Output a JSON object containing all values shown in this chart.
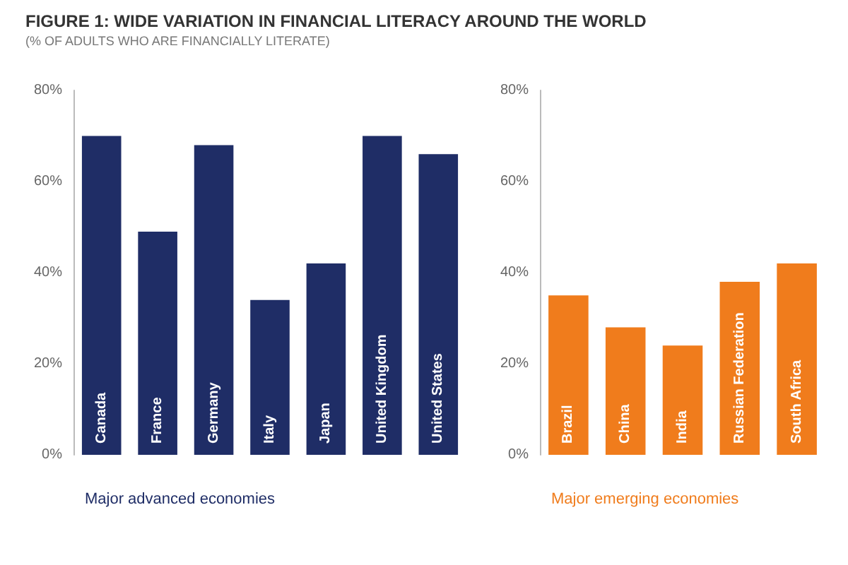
{
  "chart_data": [
    {
      "type": "bar",
      "title": "FIGURE 1: WIDE VARIATION IN FINANCIAL LITERACY AROUND THE WORLD",
      "subtitle": "(% OF ADULTS WHO ARE FINANCIALLY LITERATE)",
      "xlabel": "Major advanced economies",
      "categories": [
        "Canada",
        "France",
        "Germany",
        "Italy",
        "Japan",
        "United Kingdom",
        "United States"
      ],
      "values": [
        70,
        49,
        68,
        34,
        42,
        70,
        66
      ],
      "color": "#1f2d66",
      "ylim": [
        0,
        80
      ],
      "yticks": [
        {
          "value": 0,
          "label": "0%"
        },
        {
          "value": 20,
          "label": "20%"
        },
        {
          "value": 40,
          "label": "40%"
        },
        {
          "value": 60,
          "label": "60%"
        },
        {
          "value": 80,
          "label": "80%"
        }
      ],
      "grid": false
    },
    {
      "type": "bar",
      "xlabel": "Major emerging economies",
      "categories": [
        "Brazil",
        "China",
        "India",
        "Russian Federation",
        "South Africa"
      ],
      "values": [
        35,
        28,
        24,
        38,
        42
      ],
      "color": "#f07c1c",
      "ylim": [
        0,
        80
      ],
      "yticks": [
        {
          "value": 0,
          "label": "0%"
        },
        {
          "value": 20,
          "label": "20%"
        },
        {
          "value": 40,
          "label": "40%"
        },
        {
          "value": 60,
          "label": "60%"
        },
        {
          "value": 80,
          "label": "80%"
        }
      ],
      "grid": false
    }
  ]
}
